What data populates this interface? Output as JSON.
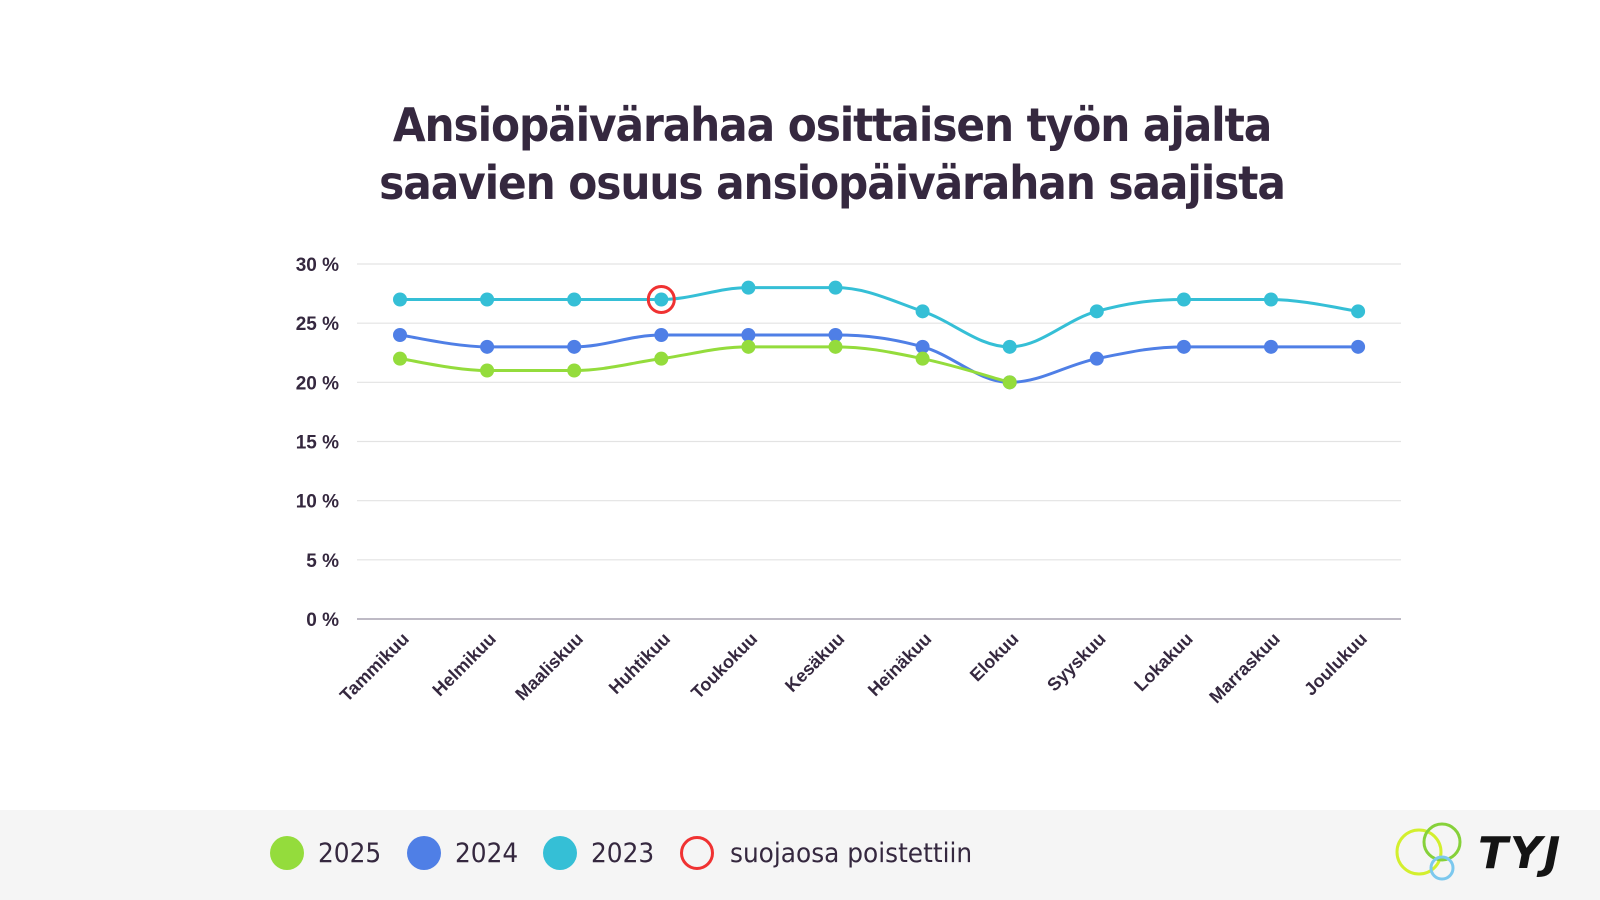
{
  "chart_data": {
    "type": "line",
    "title": "Ansiopäivärahaa osittaisen työn ajalta saavien osuus ansiopäivärahan saajista",
    "title_lines": [
      "Ansiopäivärahaa osittaisen työn ajalta",
      "saavien osuus ansiopäivärahan saajista"
    ],
    "xlabel": "",
    "ylabel": "",
    "categories": [
      "Tammikuu",
      "Helmikuu",
      "Maaliskuu",
      "Huhtikuu",
      "Toukokuu",
      "Kesäkuu",
      "Heinäkuu",
      "Elokuu",
      "Syyskuu",
      "Lokakuu",
      "Marraskuu",
      "Joulukuu"
    ],
    "ylim": [
      0,
      30
    ],
    "yticks": [
      0,
      5,
      10,
      15,
      20,
      25,
      30
    ],
    "ytick_labels": [
      "0 %",
      "5 %",
      "10 %",
      "15 %",
      "20 %",
      "25 %",
      "30 %"
    ],
    "grid": true,
    "smooth": true,
    "series": [
      {
        "name": "2023",
        "color": "#35bfd6",
        "values": [
          27,
          27,
          27,
          27,
          28,
          28,
          26,
          23,
          26,
          27,
          27,
          26
        ]
      },
      {
        "name": "2024",
        "color": "#4f7fe6",
        "values": [
          24,
          23,
          23,
          24,
          24,
          24,
          23,
          20,
          22,
          23,
          23,
          23
        ]
      },
      {
        "name": "2025",
        "color": "#94dc3c",
        "values": [
          22,
          21,
          21,
          22,
          23,
          23,
          22,
          20,
          null,
          null,
          null,
          null
        ]
      }
    ],
    "annotations": [
      {
        "series": "2023",
        "category": "Huhtikuu",
        "marker": "red-ring",
        "color": "#f03232",
        "meaning": "suojaosa poistettiin"
      }
    ],
    "legend": {
      "placement": "bottom",
      "items": [
        {
          "label": "2025",
          "color": "#94dc3c",
          "shape": "dot"
        },
        {
          "label": "2024",
          "color": "#4f7fe6",
          "shape": "dot"
        },
        {
          "label": "2023",
          "color": "#35bfd6",
          "shape": "dot"
        },
        {
          "label": "suojaosa poistettiin",
          "color": "#f03232",
          "shape": "ring"
        }
      ]
    }
  },
  "logo": {
    "text": "TYJ"
  }
}
